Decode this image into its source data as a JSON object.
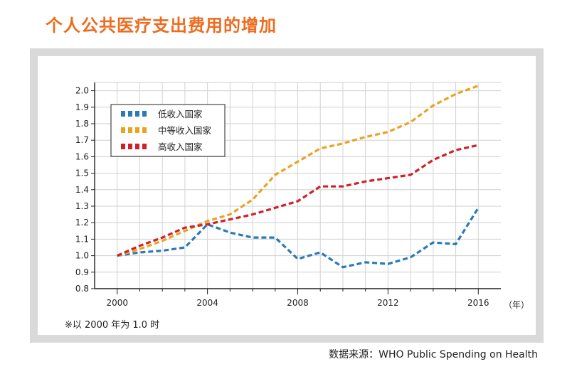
{
  "title": "个人公共医疗支出费用的增加",
  "footnote": "※以 2000 年为 1.0 时",
  "source": "数据来源：WHO Public Spending on Health",
  "colors": {
    "title": "#ec6c20",
    "low": "#2a7ab5",
    "middle": "#e8a321",
    "high": "#d1202a"
  },
  "chart_data": {
    "type": "line",
    "title": "个人公共医疗支出费用的增加",
    "xlabel": "（年）",
    "ylabel": "",
    "x_ticks": [
      "2000",
      "2004",
      "2008",
      "2012",
      "2016"
    ],
    "y_ticks": [
      "0.8",
      "0.9",
      "1.0",
      "1.1",
      "1.2",
      "1.3",
      "1.4",
      "1.5",
      "1.6",
      "1.7",
      "1.8",
      "1.9",
      "2.0"
    ],
    "xlim": [
      1999,
      2017
    ],
    "ylim": [
      0.8,
      2.05
    ],
    "grid": true,
    "legend_position": "top-left",
    "x": [
      2000,
      2001,
      2002,
      2003,
      2004,
      2005,
      2006,
      2007,
      2008,
      2009,
      2010,
      2011,
      2012,
      2013,
      2014,
      2015,
      2016
    ],
    "series": [
      {
        "name": "低收入国家",
        "color": "#2a7ab5",
        "values": [
          1.0,
          1.02,
          1.03,
          1.05,
          1.19,
          1.14,
          1.11,
          1.11,
          0.98,
          1.02,
          0.93,
          0.96,
          0.95,
          0.99,
          1.08,
          1.07,
          1.29
        ]
      },
      {
        "name": "中等收入国家",
        "color": "#e8a321",
        "values": [
          1.0,
          1.04,
          1.09,
          1.15,
          1.21,
          1.25,
          1.34,
          1.49,
          1.57,
          1.65,
          1.68,
          1.72,
          1.75,
          1.81,
          1.91,
          1.98,
          2.03
        ]
      },
      {
        "name": "高收入国家",
        "color": "#d1202a",
        "values": [
          1.0,
          1.06,
          1.11,
          1.17,
          1.19,
          1.22,
          1.25,
          1.29,
          1.33,
          1.42,
          1.42,
          1.45,
          1.47,
          1.49,
          1.58,
          1.64,
          1.67
        ]
      }
    ]
  }
}
